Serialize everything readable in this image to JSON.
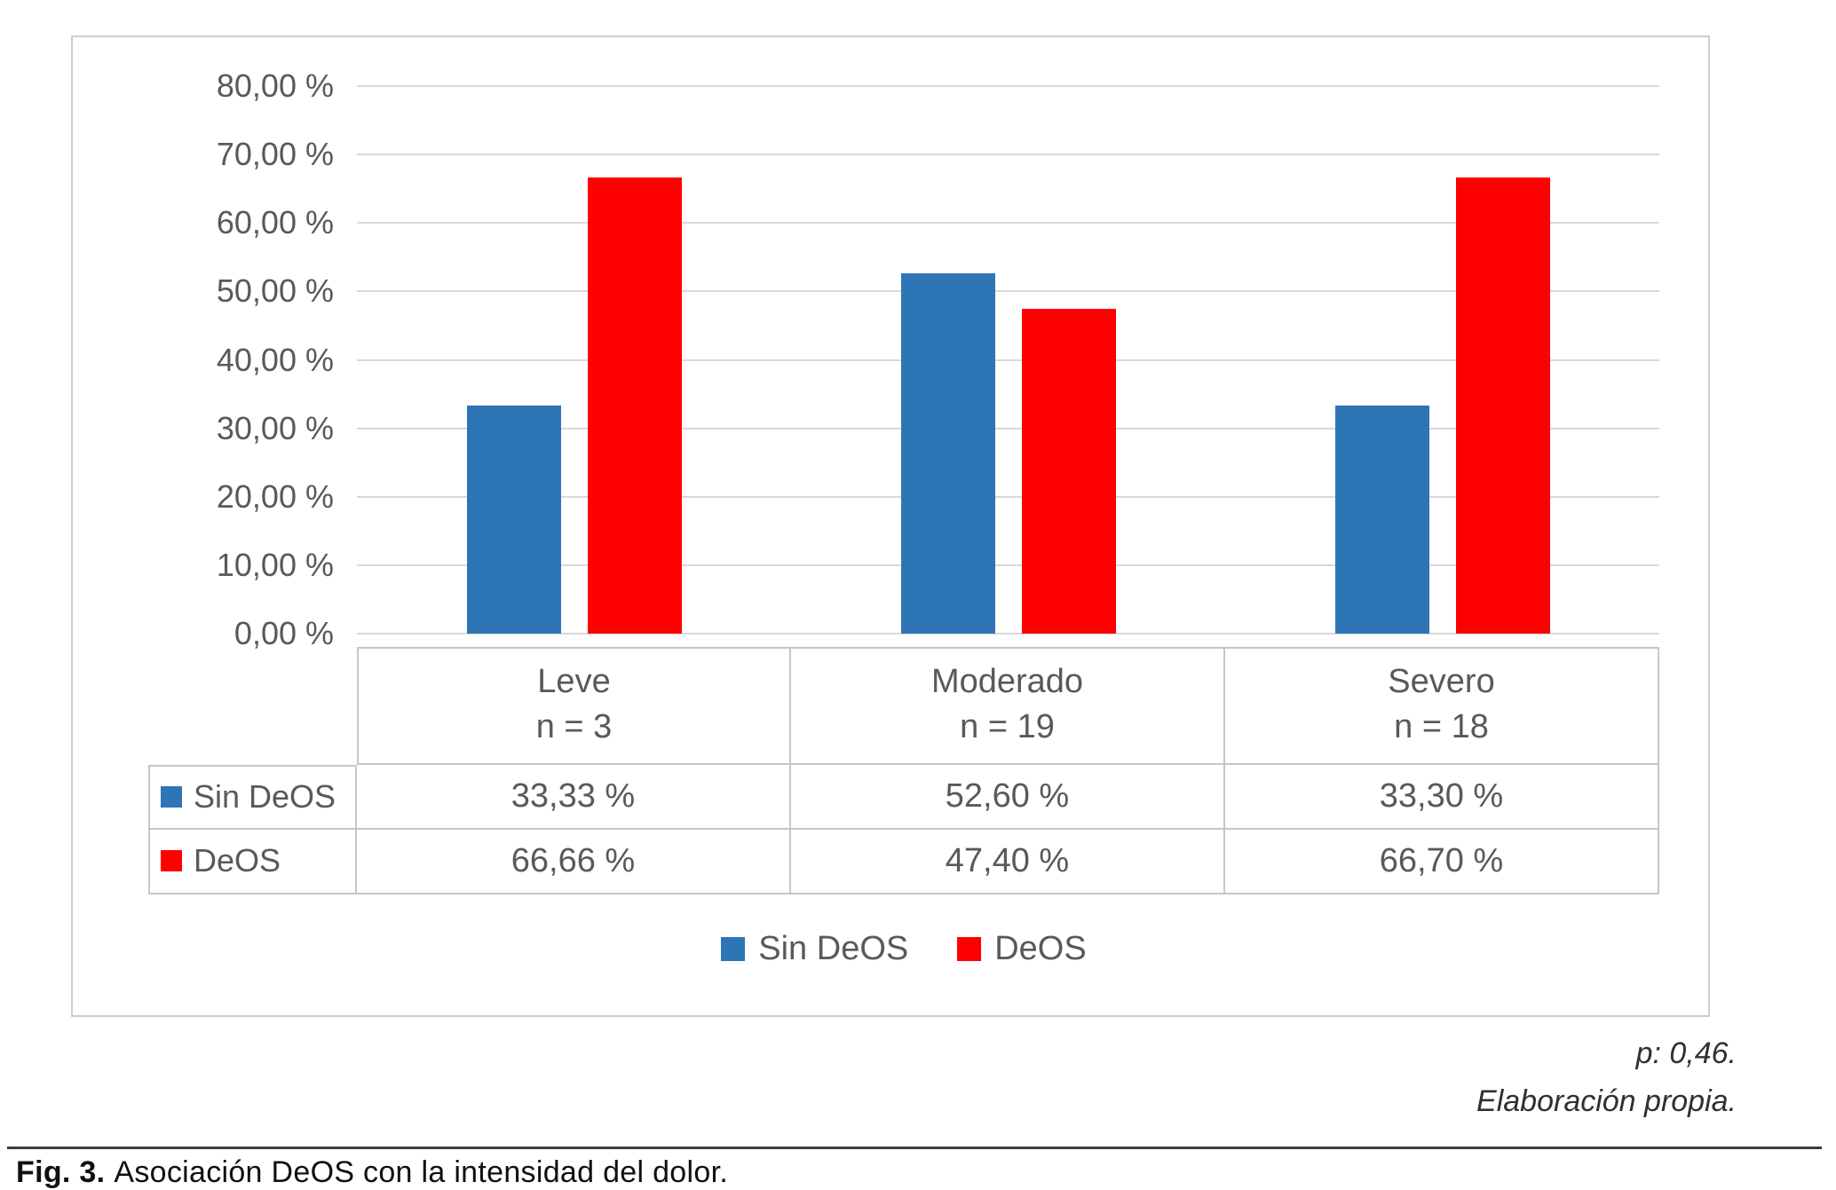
{
  "figure": {
    "notes": [
      "p: 0,46.",
      "Elaboración propia."
    ],
    "caption_label": "Fig. 3.",
    "caption_text": "Asociación DeOS con la intensidad del dolor."
  },
  "chart_data": {
    "type": "bar",
    "title": "",
    "xlabel": "",
    "ylabel": "",
    "categories": [
      "Leve",
      "Moderado",
      "Severo"
    ],
    "category_sublabels": [
      "n = 3",
      "n = 19",
      "n = 18"
    ],
    "series": [
      {
        "name": "Sin DeOS",
        "color": "#2e75b6",
        "values": [
          33.33,
          52.6,
          33.3
        ],
        "labels": [
          "33,33 %",
          "52,60 %",
          "33,30 %"
        ]
      },
      {
        "name": "DeOS",
        "color": "#ff0000",
        "values": [
          66.66,
          47.4,
          66.7
        ],
        "labels": [
          "66,66 %",
          "47,40 %",
          "66,70 %"
        ]
      }
    ],
    "y_axis": {
      "min": 0,
      "max": 80,
      "step": 10,
      "tick_labels": [
        "0,00 %",
        "10,00 %",
        "20,00 %",
        "30,00 %",
        "40,00 %",
        "50,00 %",
        "60,00 %",
        "70,00 %",
        "80,00 %"
      ]
    },
    "grid": true,
    "legend": {
      "position": "bottom",
      "entries": [
        "Sin DeOS",
        "DeOS"
      ]
    }
  }
}
